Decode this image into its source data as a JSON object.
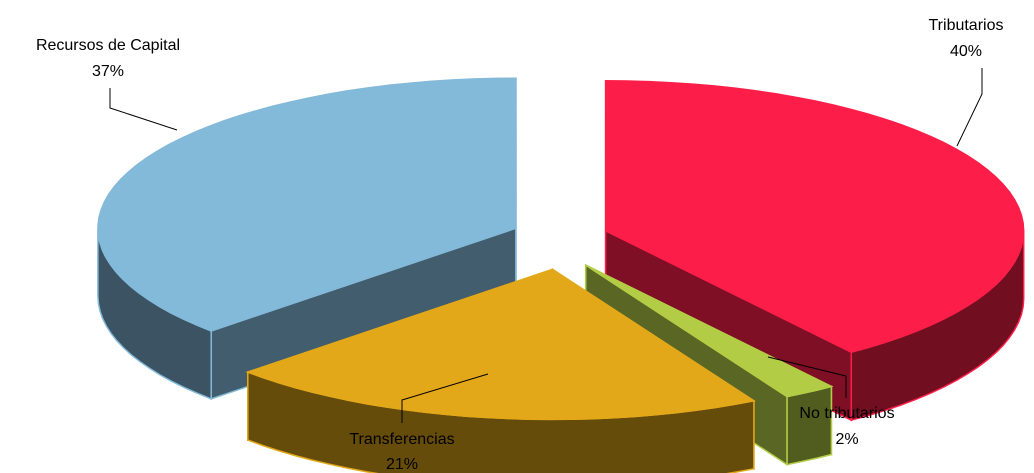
{
  "chart_data": {
    "type": "pie",
    "style": "3d-exploded",
    "title": "",
    "legend": "none",
    "slices": [
      {
        "label": "Tributarios",
        "percent_label": "40%",
        "value": 40,
        "color": "#FC1E48"
      },
      {
        "label": "No tributarios",
        "percent_label": "2%",
        "value": 2,
        "color": "#B3CC45"
      },
      {
        "label": "Transferencias",
        "percent_label": "21%",
        "value": 21,
        "color": "#E3A819"
      },
      {
        "label": "Recursos de Capital",
        "percent_label": "37%",
        "value": 37,
        "color": "#83B9D9"
      }
    ]
  }
}
